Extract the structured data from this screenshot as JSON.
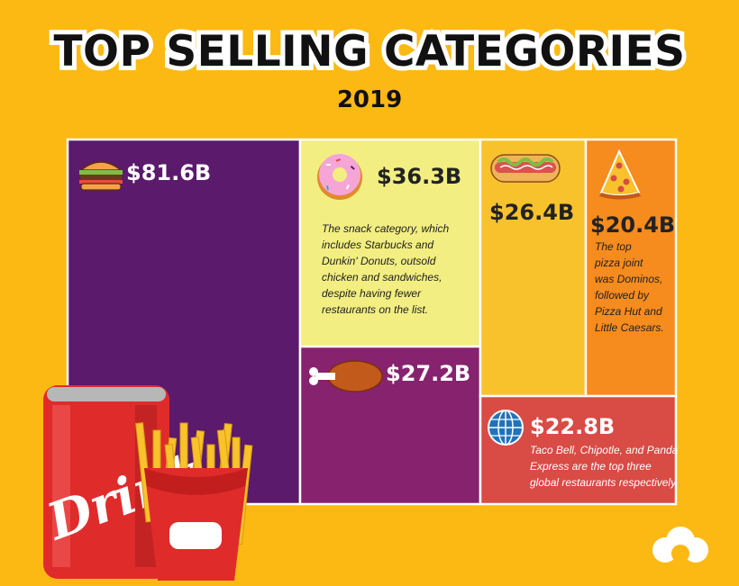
{
  "header": {
    "title": "TOP SELLING CATEGORIES",
    "subtitle": "2019"
  },
  "chart_data": {
    "type": "treemap",
    "title": "TOP SELLING CATEGORIES",
    "subtitle": "2019",
    "categories": [
      {
        "icon": "burger-icon",
        "label": "$81.6B",
        "value": 81.6,
        "color": "#5B1A6B",
        "text_color": "#FFFFFF"
      },
      {
        "icon": "donut-icon",
        "label": "$36.3B",
        "value": 36.3,
        "color": "#F2EE81",
        "text_color": "#222222",
        "note": [
          "The snack category, which",
          "includes Starbucks and",
          "Dunkin' Donuts, outsold",
          "chicken and sandwiches,",
          "despite having fewer",
          "restaurants on the list."
        ]
      },
      {
        "icon": "chicken-leg-icon",
        "label": "$27.2B",
        "value": 27.2,
        "color": "#87226E",
        "text_color": "#FFFFFF"
      },
      {
        "icon": "hotdog-icon",
        "label": "$26.4B",
        "value": 26.4,
        "color": "#F8C22C",
        "text_color": "#222222"
      },
      {
        "icon": "pizza-icon",
        "label": "$20.4B",
        "value": 20.4,
        "color": "#F68B1E",
        "text_color": "#222222",
        "note": [
          "The top",
          "pizza joint",
          "was Dominos,",
          "followed by",
          "Pizza Hut and",
          "Little Caesars."
        ]
      },
      {
        "icon": "globe-icon",
        "label": "$22.8B",
        "value": 22.8,
        "color": "#D94B45",
        "text_color": "#FFFFFF",
        "note": [
          "Taco Bell, Chipotle, and Panda",
          "Express are the top three",
          "global restaurants respectively."
        ]
      }
    ]
  },
  "decorations": {
    "can_text": "Drink"
  }
}
